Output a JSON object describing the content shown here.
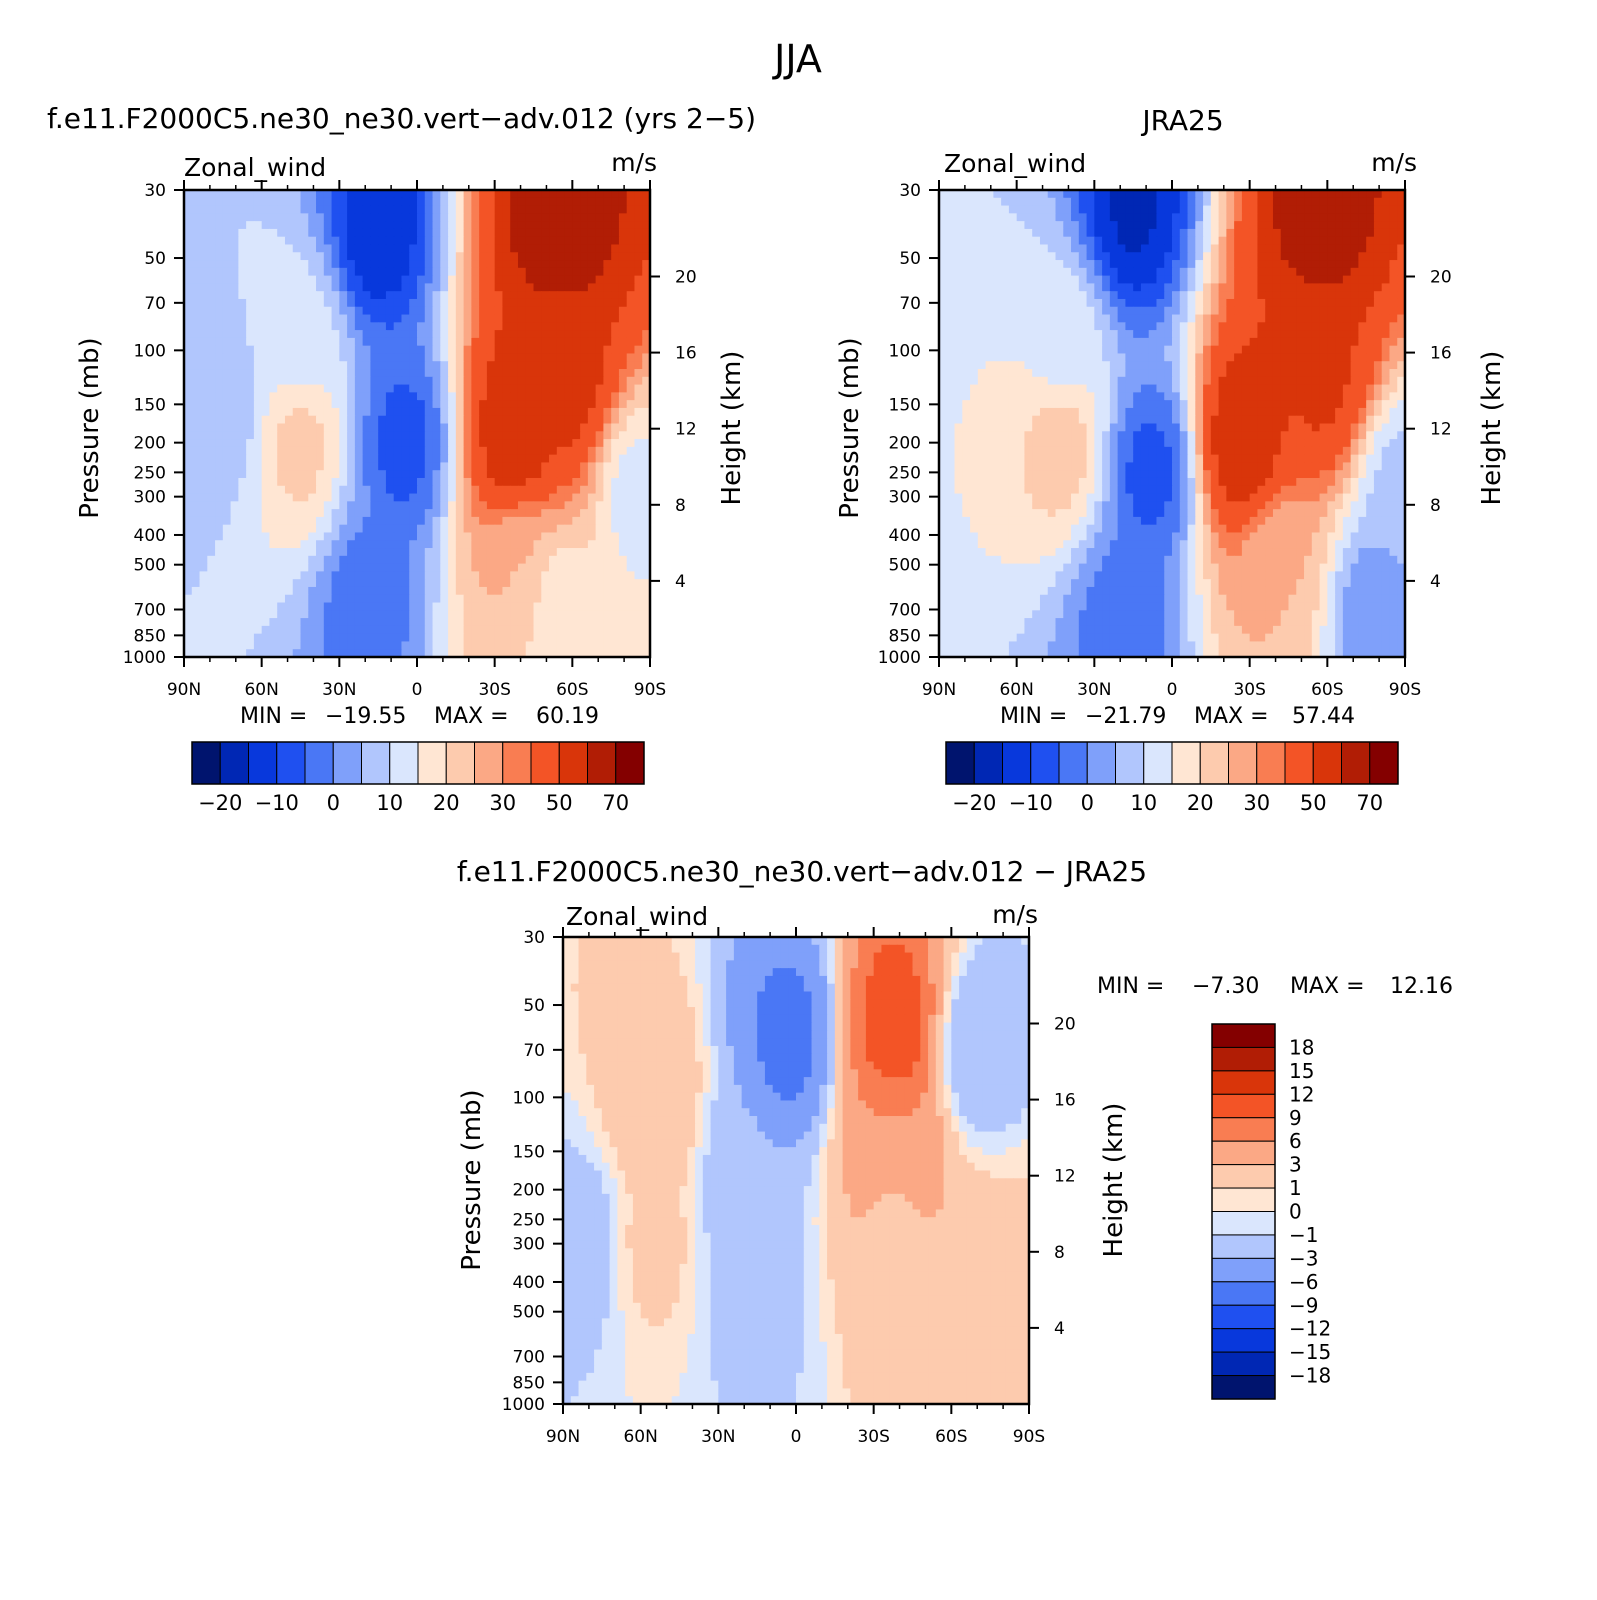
{
  "figure_title": "JJA",
  "colors": {
    "blue_scale": [
      "#00146e",
      "#0027b4",
      "#0838dc",
      "#1f50f0",
      "#4a77f5",
      "#7fa0fa",
      "#b1c6fd",
      "#dae6fd"
    ],
    "red_scale": [
      "#ffe6d3",
      "#fdcbae",
      "#fba885",
      "#f97d52",
      "#f35426",
      "#d9350a",
      "#b11d05",
      "#840000"
    ]
  },
  "chart_data": [
    {
      "id": "model",
      "type": "heatmap",
      "title": "f.e11.F2000C5.ne30_ne30.vert−adv.012 (yrs 2−5)",
      "left_label": "Zonal_wind",
      "right_label": "m/s",
      "ylabel": "Pressure (mb)",
      "ylabel_right": "Height (km)",
      "x_ticks": [
        "90N",
        "60N",
        "30N",
        "0",
        "30S",
        "60S",
        "90S"
      ],
      "x_range": [
        90,
        -90
      ],
      "y_ticks": [
        30,
        50,
        70,
        100,
        150,
        200,
        250,
        300,
        400,
        500,
        700,
        850,
        1000
      ],
      "y_range": [
        30,
        1000
      ],
      "y_scale": "log",
      "height_ticks": [
        20,
        16,
        12,
        8,
        4
      ],
      "min_label": "MIN =",
      "min_value": "−19.55",
      "max_label": "MAX =",
      "max_value": "60.19",
      "colorbar_labels": [
        "−20",
        "−10",
        "0",
        "10",
        "20",
        "30",
        "50",
        "70"
      ],
      "colorbar_orientation": "horizontal",
      "features": [
        {
          "lat": -55,
          "p": 35,
          "value": 60
        },
        {
          "lat": -57,
          "p": 120,
          "value": 45
        },
        {
          "lat": -38,
          "p": 190,
          "value": 48
        },
        {
          "lat": -40,
          "p": 500,
          "value": 20
        },
        {
          "lat": -55,
          "p": 700,
          "value": 10
        },
        {
          "lat": 45,
          "p": 200,
          "value": 17
        },
        {
          "lat": 45,
          "p": 100,
          "value": 8
        },
        {
          "lat": 75,
          "p": 150,
          "value": 2
        },
        {
          "lat": 15,
          "p": 40,
          "value": -19
        },
        {
          "lat": 5,
          "p": 200,
          "value": -12
        },
        {
          "lat": 20,
          "p": 700,
          "value": -8
        },
        {
          "lat": -85,
          "p": 300,
          "value": 8
        }
      ]
    },
    {
      "id": "obs",
      "type": "heatmap",
      "title": "JRA25",
      "left_label": "Zonal_wind",
      "right_label": "m/s",
      "ylabel": "Pressure (mb)",
      "ylabel_right": "Height (km)",
      "x_ticks": [
        "90N",
        "60N",
        "30N",
        "0",
        "30S",
        "60S",
        "90S"
      ],
      "x_range": [
        90,
        -90
      ],
      "y_ticks": [
        30,
        50,
        70,
        100,
        150,
        200,
        250,
        300,
        400,
        500,
        700,
        850,
        1000
      ],
      "y_range": [
        30,
        1000
      ],
      "y_scale": "log",
      "height_ticks": [
        20,
        16,
        12,
        8,
        4
      ],
      "min_label": "MIN =",
      "min_value": "−21.79",
      "max_label": "MAX =",
      "max_value": "57.44",
      "colorbar_labels": [
        "−20",
        "−10",
        "0",
        "10",
        "20",
        "30",
        "50",
        "70"
      ],
      "colorbar_orientation": "horizontal",
      "features": [
        {
          "lat": -58,
          "p": 35,
          "value": 57
        },
        {
          "lat": -58,
          "p": 120,
          "value": 42
        },
        {
          "lat": -28,
          "p": 200,
          "value": 48
        },
        {
          "lat": -40,
          "p": 500,
          "value": 20
        },
        {
          "lat": 43,
          "p": 200,
          "value": 18
        },
        {
          "lat": 43,
          "p": 100,
          "value": 8
        },
        {
          "lat": 15,
          "p": 35,
          "value": -21
        },
        {
          "lat": 8,
          "p": 250,
          "value": -12
        },
        {
          "lat": 20,
          "p": 800,
          "value": -8
        },
        {
          "lat": -80,
          "p": 700,
          "value": -5
        },
        {
          "lat": -88,
          "p": 300,
          "value": 3
        }
      ]
    },
    {
      "id": "diff",
      "type": "heatmap",
      "title": "f.e11.F2000C5.ne30_ne30.vert−adv.012 − JRA25",
      "left_label": "Zonal_wind",
      "right_label": "m/s",
      "ylabel": "Pressure (mb)",
      "ylabel_right": "Height (km)",
      "x_ticks": [
        "90N",
        "60N",
        "30N",
        "0",
        "30S",
        "60S",
        "90S"
      ],
      "x_range": [
        90,
        -90
      ],
      "y_ticks": [
        30,
        50,
        70,
        100,
        150,
        200,
        250,
        300,
        400,
        500,
        700,
        850,
        1000
      ],
      "y_range": [
        30,
        1000
      ],
      "y_scale": "log",
      "height_ticks": [
        20,
        16,
        12,
        8,
        4
      ],
      "min_label": "MIN =",
      "min_value": "−7.30",
      "max_label": "MAX =",
      "max_value": "12.16",
      "colorbar_labels": [
        "18",
        "15",
        "12",
        "9",
        "6",
        "3",
        "1",
        "0",
        "−1",
        "−3",
        "−6",
        "−9",
        "−12",
        "−15",
        "−18"
      ],
      "colorbar_orientation": "vertical",
      "features": [
        {
          "lat": -38,
          "p": 60,
          "value": 11
        },
        {
          "lat": -38,
          "p": 150,
          "value": 6
        },
        {
          "lat": -38,
          "p": 250,
          "value": 2
        },
        {
          "lat": 55,
          "p": 100,
          "value": 3
        },
        {
          "lat": 55,
          "p": 300,
          "value": 1.5
        },
        {
          "lat": 3,
          "p": 65,
          "value": -7
        },
        {
          "lat": 20,
          "p": 200,
          "value": -2.5
        },
        {
          "lat": 15,
          "p": 500,
          "value": -1.5
        },
        {
          "lat": -70,
          "p": 70,
          "value": -3
        },
        {
          "lat": -75,
          "p": 400,
          "value": 2
        },
        {
          "lat": 82,
          "p": 300,
          "value": -2
        }
      ]
    }
  ]
}
